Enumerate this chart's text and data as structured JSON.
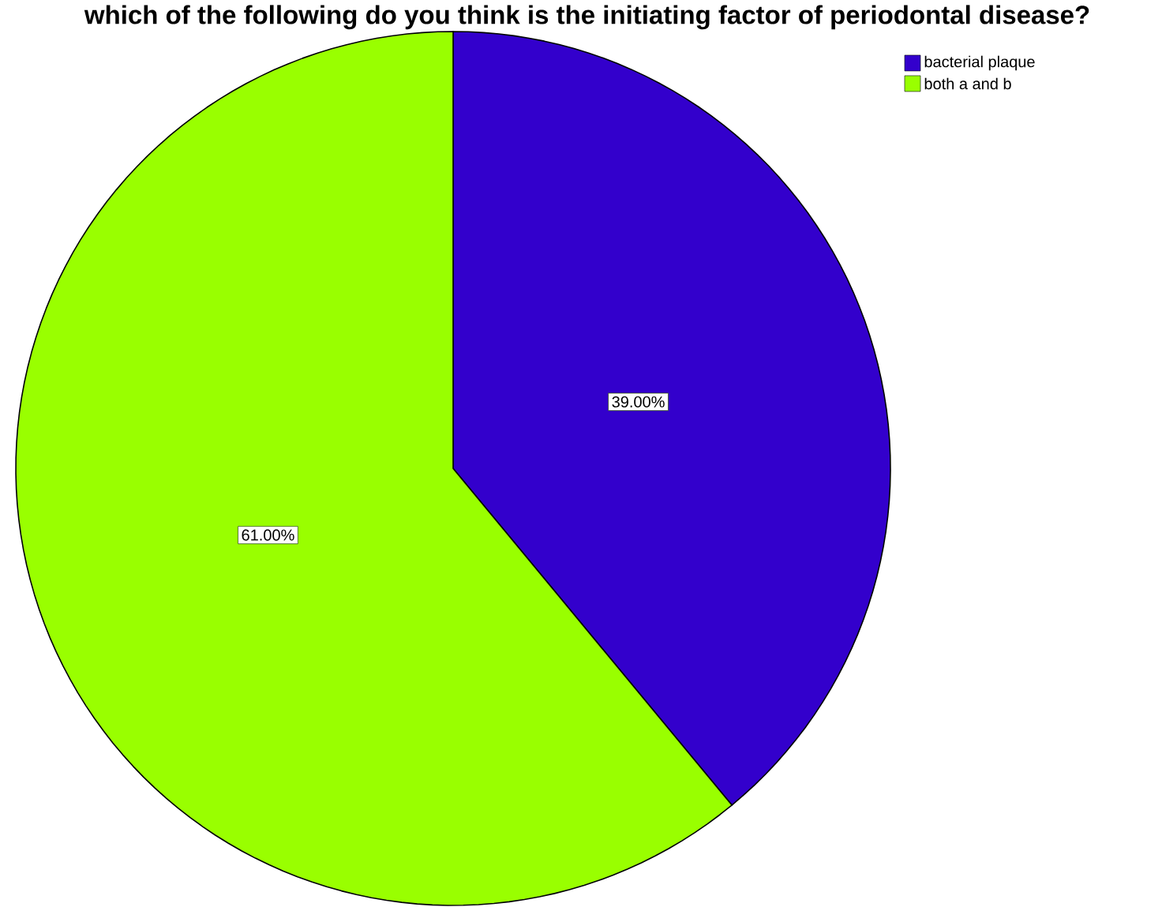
{
  "chart_data": {
    "type": "pie",
    "title": "which of the following do you think is the initiating factor of periodontal disease?",
    "categories": [
      "bacterial plaque",
      "both a and b"
    ],
    "values": [
      39,
      61
    ],
    "value_labels": [
      "39.00%",
      "61.00%"
    ],
    "colors": [
      "#3300cc",
      "#99ff00"
    ],
    "legend": "top right"
  }
}
